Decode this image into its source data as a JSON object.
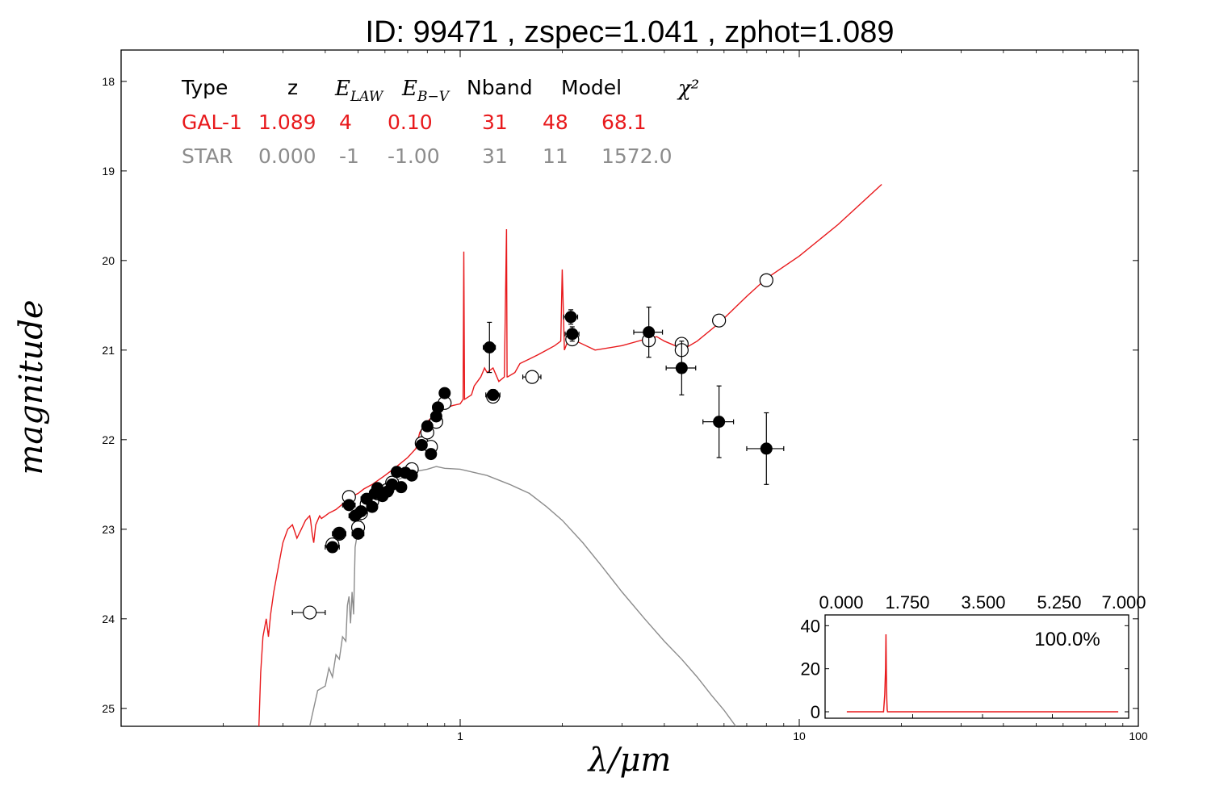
{
  "title": "ID:  99471 , zspec=1.041 , zphot=1.089",
  "colors": {
    "galaxy": "#e8191c",
    "star": "#8c8c8c",
    "points": "#000000",
    "open_fill": "#ffffff"
  },
  "chart_data": {
    "type": "scatter",
    "title": "ID:  99471 , zspec=1.041 , zphot=1.089",
    "xlabel": "λ/μm",
    "ylabel": "magnitude",
    "x_scale": "log",
    "xlim": [
      0.1,
      100
    ],
    "ylim": [
      25.2,
      17.65
    ],
    "y_inverted": true,
    "x_ticks": [
      1,
      10,
      100
    ],
    "x_tick_labels": [
      "1",
      "10",
      "100"
    ],
    "y_ticks": [
      18,
      19,
      20,
      21,
      22,
      23,
      24,
      25
    ],
    "y_tick_labels": [
      "18",
      "19",
      "20",
      "21",
      "22",
      "23",
      "24",
      "25"
    ],
    "grid": false,
    "fit_table": {
      "headers": [
        "Type",
        "z",
        "E_LAW",
        "E_B-V",
        "Nband",
        "Model",
        "χ²"
      ],
      "rows": [
        {
          "name": "GAL-1",
          "values": [
            "GAL-1",
            "1.089",
            "4",
            "0.10",
            "31",
            "48",
            "68.1"
          ]
        },
        {
          "name": "STAR",
          "values": [
            "STAR",
            "0.000",
            "-1",
            "-1.00",
            "31",
            "11",
            "1572.0"
          ]
        }
      ]
    },
    "observed_points": [
      {
        "x": 0.42,
        "y": 23.2,
        "xerr": 0.02,
        "yerr": 0.03
      },
      {
        "x": 0.44,
        "y": 23.05,
        "xerr": 0.02,
        "yerr": 0.03
      },
      {
        "x": 0.47,
        "y": 22.73,
        "xerr": 0.02,
        "yerr": 0.03
      },
      {
        "x": 0.49,
        "y": 22.85,
        "xerr": 0.02,
        "yerr": 0.03
      },
      {
        "x": 0.5,
        "y": 23.05,
        "xerr": 0.02,
        "yerr": 0.03
      },
      {
        "x": 0.51,
        "y": 22.8,
        "xerr": 0.02,
        "yerr": 0.03
      },
      {
        "x": 0.53,
        "y": 22.66,
        "xerr": 0.02,
        "yerr": 0.03
      },
      {
        "x": 0.55,
        "y": 22.75,
        "xerr": 0.02,
        "yerr": 0.03
      },
      {
        "x": 0.56,
        "y": 22.6,
        "xerr": 0.02,
        "yerr": 0.03
      },
      {
        "x": 0.57,
        "y": 22.54,
        "xerr": 0.02,
        "yerr": 0.03
      },
      {
        "x": 0.59,
        "y": 22.63,
        "xerr": 0.02,
        "yerr": 0.03
      },
      {
        "x": 0.61,
        "y": 22.58,
        "xerr": 0.02,
        "yerr": 0.03
      },
      {
        "x": 0.63,
        "y": 22.5,
        "xerr": 0.02,
        "yerr": 0.03
      },
      {
        "x": 0.65,
        "y": 22.36,
        "xerr": 0.02,
        "yerr": 0.03
      },
      {
        "x": 0.67,
        "y": 22.53,
        "xerr": 0.02,
        "yerr": 0.03
      },
      {
        "x": 0.69,
        "y": 22.37,
        "xerr": 0.02,
        "yerr": 0.03
      },
      {
        "x": 0.72,
        "y": 22.4,
        "xerr": 0.02,
        "yerr": 0.03
      },
      {
        "x": 0.77,
        "y": 22.06,
        "xerr": 0.02,
        "yerr": 0.03
      },
      {
        "x": 0.8,
        "y": 21.85,
        "xerr": 0.02,
        "yerr": 0.03
      },
      {
        "x": 0.82,
        "y": 22.16,
        "xerr": 0.02,
        "yerr": 0.03
      },
      {
        "x": 0.85,
        "y": 21.74,
        "xerr": 0.03,
        "yerr": 0.04
      },
      {
        "x": 0.86,
        "y": 21.64,
        "xerr": 0.03,
        "yerr": 0.04
      },
      {
        "x": 0.9,
        "y": 21.48,
        "xerr": 0.03,
        "yerr": 0.04
      },
      {
        "x": 1.22,
        "y": 20.97,
        "xerr": 0.05,
        "yerr": 0.28
      },
      {
        "x": 1.25,
        "y": 21.5,
        "xerr": 0.06,
        "yerr": 0.06
      },
      {
        "x": 2.12,
        "y": 20.63,
        "xerr": 0.1,
        "yerr": 0.08
      },
      {
        "x": 2.14,
        "y": 20.82,
        "xerr": 0.1,
        "yerr": 0.08
      },
      {
        "x": 3.6,
        "y": 20.8,
        "xerr": 0.35,
        "yerr": 0.28
      },
      {
        "x": 4.5,
        "y": 21.2,
        "xerr": 0.45,
        "yerr": 0.3
      },
      {
        "x": 5.8,
        "y": 21.8,
        "xerr": 0.6,
        "yerr": 0.4
      },
      {
        "x": 8.0,
        "y": 22.1,
        "xerr": 1.0,
        "yerr": 0.4
      }
    ],
    "model_magnitudes": [
      {
        "x": 0.36,
        "y": 23.93,
        "xerr": 0.04
      },
      {
        "x": 0.42,
        "y": 23.17
      },
      {
        "x": 0.44,
        "y": 23.05
      },
      {
        "x": 0.47,
        "y": 22.64
      },
      {
        "x": 0.5,
        "y": 22.98
      },
      {
        "x": 0.51,
        "y": 22.82
      },
      {
        "x": 0.53,
        "y": 22.72
      },
      {
        "x": 0.55,
        "y": 22.69
      },
      {
        "x": 0.57,
        "y": 22.6
      },
      {
        "x": 0.61,
        "y": 22.56
      },
      {
        "x": 0.63,
        "y": 22.48
      },
      {
        "x": 0.72,
        "y": 22.33
      },
      {
        "x": 0.77,
        "y": 22.04
      },
      {
        "x": 0.8,
        "y": 21.92
      },
      {
        "x": 0.82,
        "y": 22.08
      },
      {
        "x": 0.85,
        "y": 21.8
      },
      {
        "x": 0.9,
        "y": 21.59
      },
      {
        "x": 1.25,
        "y": 21.52
      },
      {
        "x": 1.63,
        "y": 21.3,
        "xerr": 0.1
      },
      {
        "x": 2.14,
        "y": 20.88
      },
      {
        "x": 3.6,
        "y": 20.89
      },
      {
        "x": 4.5,
        "y": 20.93
      },
      {
        "x": 4.5,
        "y": 21.0
      },
      {
        "x": 5.8,
        "y": 20.67
      },
      {
        "x": 8.0,
        "y": 20.22
      }
    ],
    "series": [
      {
        "name": "GAL-1",
        "color": "#e8191c",
        "x": [
          0.255,
          0.258,
          0.262,
          0.268,
          0.272,
          0.276,
          0.282,
          0.29,
          0.3,
          0.31,
          0.32,
          0.33,
          0.34,
          0.35,
          0.36,
          0.362,
          0.366,
          0.37,
          0.375,
          0.38,
          0.385,
          0.39,
          0.4,
          0.41,
          0.42,
          0.43,
          0.45,
          0.47,
          0.5,
          0.52,
          0.55,
          0.6,
          0.65,
          0.7,
          0.74,
          0.76,
          0.78,
          0.8,
          0.85,
          0.9,
          0.95,
          1.0,
          1.02,
          1.025,
          1.03,
          1.08,
          1.1,
          1.15,
          1.18,
          1.2,
          1.25,
          1.3,
          1.35,
          1.37,
          1.375,
          1.38,
          1.45,
          1.5,
          1.6,
          1.7,
          1.8,
          1.9,
          1.98,
          2.0,
          2.03,
          2.1,
          2.2,
          2.5,
          3.0,
          3.5,
          3.8,
          4.0,
          4.3,
          4.6,
          5.0,
          5.8,
          7.0,
          8.0,
          10.0,
          13.0,
          17.5
        ],
        "y": [
          25.2,
          24.6,
          24.2,
          24.0,
          24.2,
          23.95,
          23.7,
          23.45,
          23.15,
          23.0,
          22.95,
          23.1,
          23.0,
          22.9,
          22.85,
          22.9,
          23.05,
          23.15,
          22.95,
          22.9,
          22.85,
          22.88,
          22.85,
          22.82,
          22.8,
          22.78,
          22.72,
          22.65,
          22.6,
          22.55,
          22.5,
          22.4,
          22.3,
          22.2,
          22.1,
          21.92,
          21.85,
          21.8,
          21.7,
          21.65,
          21.62,
          21.6,
          21.55,
          19.9,
          21.55,
          21.5,
          21.4,
          21.3,
          21.2,
          21.25,
          21.2,
          21.35,
          21.3,
          19.65,
          21.3,
          21.3,
          21.25,
          21.15,
          21.1,
          21.05,
          21.0,
          20.95,
          20.9,
          20.1,
          21.0,
          20.85,
          20.9,
          21.0,
          20.95,
          20.88,
          20.85,
          20.9,
          20.95,
          20.98,
          20.9,
          20.7,
          20.4,
          20.2,
          19.95,
          19.6,
          19.15
        ]
      },
      {
        "name": "STAR",
        "color": "#8c8c8c",
        "x": [
          0.36,
          0.38,
          0.4,
          0.41,
          0.42,
          0.43,
          0.44,
          0.45,
          0.46,
          0.465,
          0.47,
          0.475,
          0.48,
          0.485,
          0.49,
          0.5,
          0.52,
          0.55,
          0.6,
          0.65,
          0.7,
          0.75,
          0.8,
          0.85,
          0.9,
          1.0,
          1.2,
          1.4,
          1.6,
          1.8,
          2.0,
          2.3,
          2.6,
          3.0,
          3.5,
          4.0,
          4.5,
          5.0,
          5.5,
          6.0,
          6.5
        ],
        "y": [
          25.2,
          24.8,
          24.75,
          24.55,
          24.65,
          24.4,
          24.45,
          24.2,
          24.25,
          23.85,
          23.75,
          24.05,
          23.7,
          23.95,
          23.2,
          23.0,
          22.8,
          22.65,
          22.55,
          22.45,
          22.4,
          22.35,
          22.33,
          22.3,
          22.32,
          22.33,
          22.4,
          22.5,
          22.6,
          22.75,
          22.9,
          23.15,
          23.4,
          23.7,
          24.0,
          24.25,
          24.45,
          24.65,
          24.85,
          25.02,
          25.2
        ]
      }
    ],
    "inset": {
      "type": "line",
      "color": "#e8191c",
      "xlim": [
        0,
        7
      ],
      "ylim": [
        -3,
        45
      ],
      "x_tick_labels": [
        "0.000",
        "1.750",
        "3.500",
        "5.250",
        "7.000"
      ],
      "x_ticks": [
        0,
        1.75,
        3.5,
        5.25,
        7
      ],
      "y_tick_labels": [
        "0",
        "20",
        "40"
      ],
      "y_ticks": [
        0,
        20,
        40
      ],
      "annotation": "100.0%",
      "x": [
        0.1,
        1.02,
        1.05,
        1.07,
        1.08,
        1.09,
        1.1,
        1.11,
        1.12,
        6.9
      ],
      "y": [
        0,
        0,
        8,
        20,
        36,
        18,
        6,
        1,
        0,
        0
      ]
    }
  }
}
